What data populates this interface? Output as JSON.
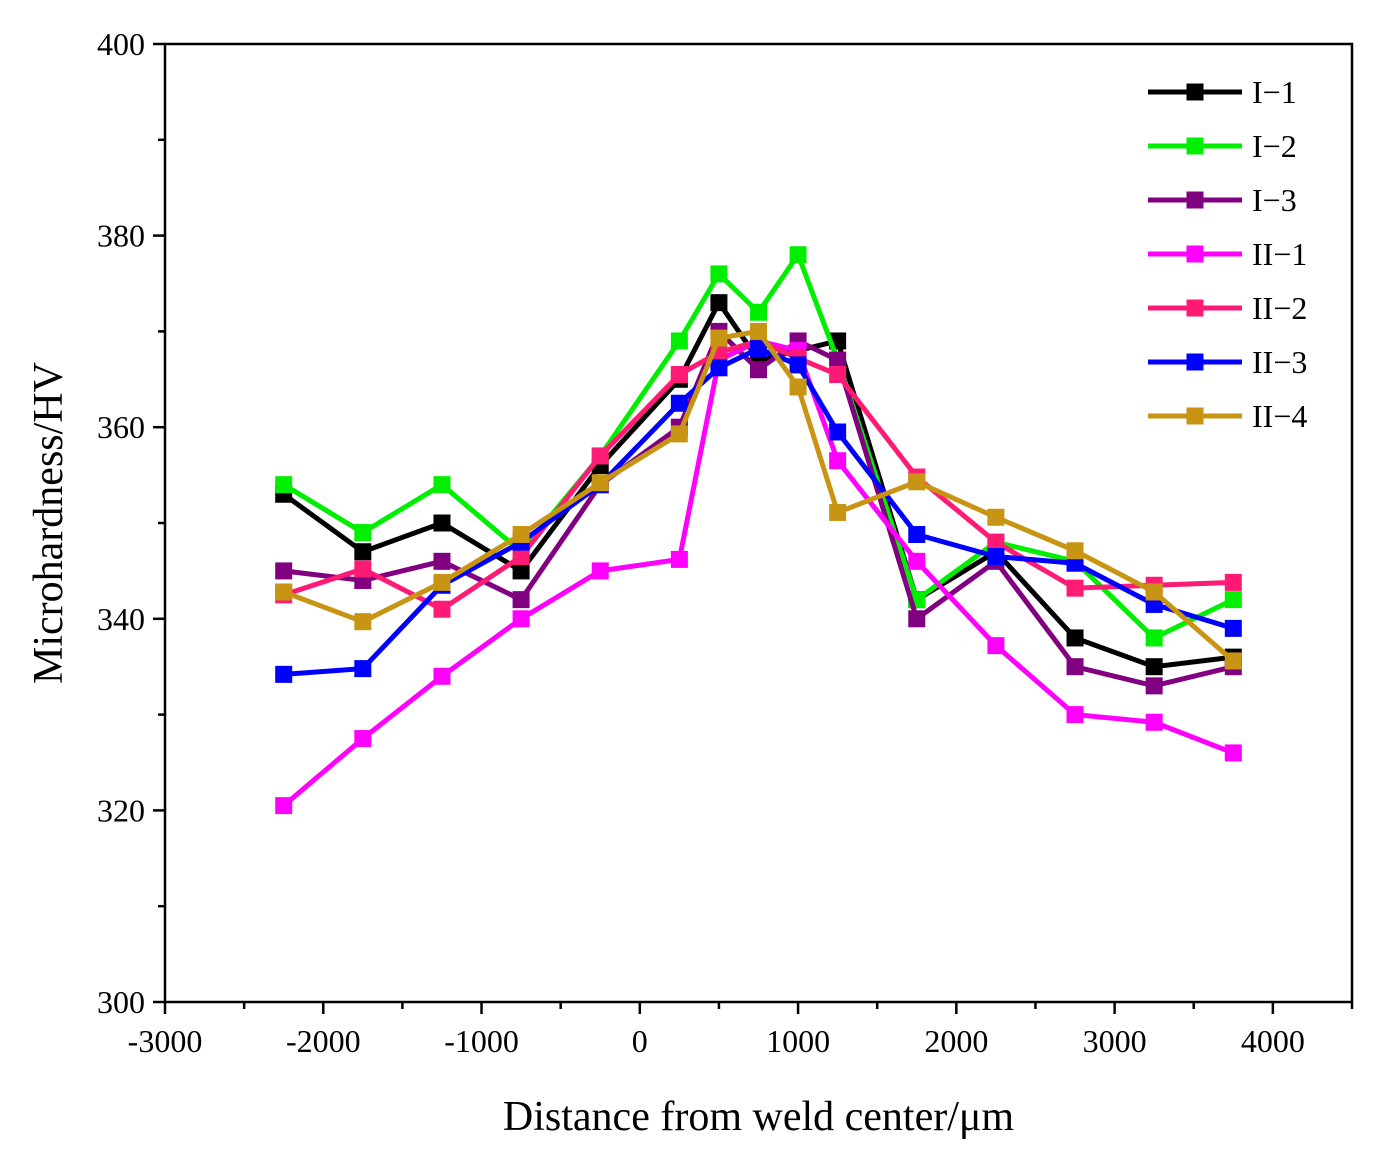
{
  "chart_data": {
    "type": "line",
    "xlabel": "Distance from weld center/μm",
    "ylabel": "Microhardness/HV",
    "xlim": [
      -3000,
      4500
    ],
    "ylim": [
      300,
      400
    ],
    "xticks": [
      -3000,
      -2000,
      -1000,
      0,
      1000,
      2000,
      3000,
      4000
    ],
    "yticks": [
      300,
      320,
      340,
      360,
      380,
      400
    ],
    "x_minor_step": 500,
    "y_minor_step": 10,
    "grid": false,
    "legend_position": "top-right",
    "marker": "square",
    "series": [
      {
        "name": "I−1",
        "color": "#000000",
        "points": [
          [
            -2250,
            353
          ],
          [
            -1750,
            347
          ],
          [
            -1250,
            350
          ],
          [
            -750,
            345
          ],
          [
            -250,
            356
          ],
          [
            250,
            365
          ],
          [
            500,
            373
          ],
          [
            750,
            367
          ],
          [
            1000,
            368
          ],
          [
            1250,
            369
          ],
          [
            1750,
            342
          ],
          [
            2250,
            347
          ],
          [
            2750,
            338
          ],
          [
            3250,
            335
          ],
          [
            3750,
            336
          ]
        ]
      },
      {
        "name": "I−2",
        "color": "#00ee00",
        "points": [
          [
            -2250,
            354
          ],
          [
            -1750,
            349
          ],
          [
            -1250,
            354
          ],
          [
            -750,
            347
          ],
          [
            -250,
            357
          ],
          [
            250,
            369
          ],
          [
            500,
            376
          ],
          [
            750,
            372
          ],
          [
            1000,
            378
          ],
          [
            1250,
            367
          ],
          [
            1750,
            342
          ],
          [
            2250,
            348
          ],
          [
            2750,
            346
          ],
          [
            3250,
            338
          ],
          [
            3750,
            342
          ]
        ]
      },
      {
        "name": "I−3",
        "color": "#800080",
        "points": [
          [
            -2250,
            345
          ],
          [
            -1750,
            344
          ],
          [
            -1250,
            346
          ],
          [
            -750,
            342
          ],
          [
            -250,
            354
          ],
          [
            250,
            360
          ],
          [
            500,
            370
          ],
          [
            750,
            366
          ],
          [
            1000,
            369
          ],
          [
            1250,
            367
          ],
          [
            1750,
            340
          ],
          [
            2250,
            346
          ],
          [
            2750,
            335
          ],
          [
            3250,
            333
          ],
          [
            3750,
            335
          ]
        ]
      },
      {
        "name": "II−1",
        "color": "#ff00ff",
        "points": [
          [
            -2250,
            320.5
          ],
          [
            -1750,
            327.5
          ],
          [
            -1250,
            334
          ],
          [
            -750,
            340
          ],
          [
            -250,
            345
          ],
          [
            250,
            346.2
          ],
          [
            500,
            367
          ],
          [
            750,
            369
          ],
          [
            1000,
            368
          ],
          [
            1250,
            356.5
          ],
          [
            1750,
            346
          ],
          [
            2250,
            337.2
          ],
          [
            2750,
            330
          ],
          [
            3250,
            329.2
          ],
          [
            3750,
            326
          ]
        ]
      },
      {
        "name": "II−2",
        "color": "#ff1a75",
        "points": [
          [
            -2250,
            342.5
          ],
          [
            -1750,
            345.2
          ],
          [
            -1250,
            341
          ],
          [
            -750,
            346.5
          ],
          [
            -250,
            357
          ],
          [
            250,
            365.5
          ],
          [
            500,
            367.8
          ],
          [
            750,
            369
          ],
          [
            1000,
            367.2
          ],
          [
            1250,
            365.5
          ],
          [
            1750,
            354.8
          ],
          [
            2250,
            348
          ],
          [
            2750,
            343.2
          ],
          [
            3250,
            343.5
          ],
          [
            3750,
            343.8
          ]
        ]
      },
      {
        "name": "II−3",
        "color": "#0000ff",
        "points": [
          [
            -2250,
            334.2
          ],
          [
            -1750,
            334.8
          ],
          [
            -1250,
            343.5
          ],
          [
            -750,
            348
          ],
          [
            -250,
            354
          ],
          [
            250,
            362.5
          ],
          [
            500,
            366.2
          ],
          [
            750,
            368.2
          ],
          [
            1000,
            366.5
          ],
          [
            1250,
            359.5
          ],
          [
            1750,
            348.8
          ],
          [
            2250,
            346.5
          ],
          [
            2750,
            345.8
          ],
          [
            3250,
            341.5
          ],
          [
            3750,
            339
          ]
        ]
      },
      {
        "name": "II−4",
        "color": "#c89414",
        "points": [
          [
            -2250,
            342.8
          ],
          [
            -1750,
            339.7
          ],
          [
            -1250,
            343.8
          ],
          [
            -750,
            348.8
          ],
          [
            -250,
            354.2
          ],
          [
            250,
            359.3
          ],
          [
            500,
            369.3
          ],
          [
            750,
            370
          ],
          [
            1000,
            364.2
          ],
          [
            1250,
            351.1
          ],
          [
            1750,
            354.3
          ],
          [
            2250,
            350.6
          ],
          [
            2750,
            347.1
          ],
          [
            3250,
            342.8
          ],
          [
            3750,
            335.6
          ]
        ]
      }
    ]
  }
}
